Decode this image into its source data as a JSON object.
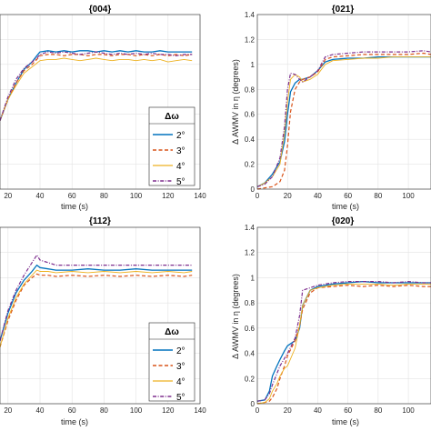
{
  "colors": {
    "s2": "#0072BD",
    "s3": "#D95319",
    "s4": "#EDB120",
    "s5": "#7E2F8E"
  },
  "chart_data": [
    {
      "type": "line",
      "title": "{004}",
      "xlabel": "time (s)",
      "ylabel": "",
      "xlim": [
        15,
        140
      ],
      "ylim": [
        0,
        1.4
      ],
      "xticks": [
        20,
        40,
        60,
        80,
        100,
        120,
        140
      ],
      "yticks": [],
      "grid": true,
      "legend": {
        "title": "Δω",
        "placement": "bottom-right",
        "entries": [
          "2°",
          "3°",
          "4°",
          "5°"
        ]
      },
      "series": [
        {
          "name": "2°",
          "x": [
            15,
            20,
            25,
            30,
            35,
            38,
            40,
            45,
            50,
            55,
            60,
            65,
            70,
            75,
            80,
            85,
            90,
            95,
            100,
            105,
            110,
            115,
            120,
            125,
            130,
            135
          ],
          "y": [
            0.55,
            0.72,
            0.85,
            0.96,
            1.02,
            1.07,
            1.1,
            1.11,
            1.1,
            1.11,
            1.1,
            1.11,
            1.11,
            1.1,
            1.11,
            1.1,
            1.11,
            1.1,
            1.11,
            1.1,
            1.1,
            1.11,
            1.1,
            1.1,
            1.1,
            1.1
          ]
        },
        {
          "name": "3°",
          "x": [
            15,
            20,
            25,
            30,
            35,
            38,
            40,
            45,
            50,
            55,
            60,
            65,
            70,
            75,
            80,
            85,
            90,
            95,
            100,
            105,
            110,
            115,
            120,
            125,
            130,
            135
          ],
          "y": [
            0.55,
            0.72,
            0.85,
            0.95,
            1.0,
            1.04,
            1.07,
            1.08,
            1.08,
            1.07,
            1.08,
            1.08,
            1.07,
            1.08,
            1.08,
            1.07,
            1.08,
            1.08,
            1.07,
            1.08,
            1.07,
            1.08,
            1.07,
            1.08,
            1.07,
            1.08
          ]
        },
        {
          "name": "4°",
          "x": [
            15,
            20,
            25,
            30,
            35,
            38,
            40,
            45,
            50,
            55,
            60,
            65,
            70,
            75,
            80,
            85,
            90,
            95,
            100,
            105,
            110,
            115,
            120,
            125,
            130,
            135
          ],
          "y": [
            0.55,
            0.72,
            0.83,
            0.93,
            0.98,
            1.01,
            1.03,
            1.04,
            1.04,
            1.05,
            1.04,
            1.03,
            1.04,
            1.05,
            1.04,
            1.03,
            1.04,
            1.04,
            1.03,
            1.04,
            1.03,
            1.04,
            1.02,
            1.03,
            1.04,
            1.03
          ]
        },
        {
          "name": "5°",
          "x": [
            15,
            20,
            25,
            30,
            35,
            38,
            40,
            45,
            50,
            55,
            60,
            65,
            70,
            75,
            80,
            85,
            90,
            95,
            100,
            105,
            110,
            115,
            120,
            125,
            130,
            135
          ],
          "y": [
            0.55,
            0.74,
            0.88,
            0.97,
            1.02,
            1.05,
            1.08,
            1.1,
            1.09,
            1.1,
            1.09,
            1.08,
            1.09,
            1.1,
            1.09,
            1.08,
            1.09,
            1.08,
            1.09,
            1.08,
            1.09,
            1.08,
            1.08,
            1.07,
            1.08,
            1.08
          ]
        }
      ]
    },
    {
      "type": "line",
      "title": "{021}",
      "xlabel": "time (s)",
      "ylabel": "Δ AWMV in η (degrees)",
      "xlim": [
        0,
        115
      ],
      "ylim": [
        0,
        1.4
      ],
      "xticks": [
        0,
        20,
        40,
        60,
        80,
        100
      ],
      "yticks": [
        0,
        0.2,
        0.4,
        0.6,
        0.8,
        1,
        1.2,
        1.4
      ],
      "grid": true,
      "series": [
        {
          "name": "2°",
          "x": [
            0,
            5,
            10,
            15,
            18,
            20,
            22,
            25,
            28,
            30,
            35,
            40,
            45,
            50,
            60,
            70,
            80,
            90,
            100,
            110,
            115
          ],
          "y": [
            0.02,
            0.05,
            0.12,
            0.22,
            0.38,
            0.6,
            0.78,
            0.85,
            0.88,
            0.88,
            0.9,
            0.95,
            1.02,
            1.04,
            1.05,
            1.05,
            1.06,
            1.06,
            1.06,
            1.06,
            1.06
          ]
        },
        {
          "name": "3°",
          "x": [
            0,
            5,
            10,
            15,
            18,
            20,
            22,
            25,
            28,
            30,
            35,
            40,
            45,
            50,
            60,
            70,
            80,
            90,
            100,
            110,
            115
          ],
          "y": [
            0.0,
            0.01,
            0.02,
            0.06,
            0.15,
            0.35,
            0.62,
            0.8,
            0.86,
            0.88,
            0.9,
            0.94,
            1.04,
            1.06,
            1.07,
            1.08,
            1.08,
            1.08,
            1.08,
            1.09,
            1.08
          ]
        },
        {
          "name": "4°",
          "x": [
            0,
            5,
            10,
            15,
            18,
            20,
            22,
            25,
            28,
            30,
            35,
            40,
            45,
            50,
            60,
            70,
            80,
            90,
            100,
            110,
            115
          ],
          "y": [
            0.02,
            0.05,
            0.1,
            0.2,
            0.45,
            0.7,
            0.88,
            0.92,
            0.9,
            0.86,
            0.88,
            0.92,
            1.0,
            1.03,
            1.04,
            1.05,
            1.05,
            1.06,
            1.06,
            1.06,
            1.06
          ]
        },
        {
          "name": "5°",
          "x": [
            0,
            5,
            10,
            15,
            18,
            20,
            22,
            25,
            28,
            30,
            35,
            40,
            45,
            50,
            60,
            70,
            80,
            90,
            100,
            110,
            115
          ],
          "y": [
            0.02,
            0.04,
            0.1,
            0.25,
            0.5,
            0.8,
            0.93,
            0.92,
            0.88,
            0.86,
            0.9,
            0.95,
            1.06,
            1.08,
            1.09,
            1.1,
            1.1,
            1.1,
            1.1,
            1.11,
            1.1
          ]
        }
      ]
    },
    {
      "type": "line",
      "title": "{112}",
      "xlabel": "time (s)",
      "ylabel": "",
      "xlim": [
        15,
        140
      ],
      "ylim": [
        0,
        1.4
      ],
      "xticks": [
        20,
        40,
        60,
        80,
        100,
        120,
        140
      ],
      "yticks": [],
      "grid": true,
      "legend": {
        "title": "Δω",
        "placement": "bottom-right",
        "entries": [
          "2°",
          "3°",
          "4°",
          "5°"
        ]
      },
      "series": [
        {
          "name": "2°",
          "x": [
            15,
            20,
            25,
            30,
            35,
            38,
            40,
            45,
            50,
            60,
            70,
            80,
            90,
            100,
            110,
            120,
            130,
            135
          ],
          "y": [
            0.5,
            0.72,
            0.88,
            0.98,
            1.05,
            1.1,
            1.08,
            1.07,
            1.06,
            1.06,
            1.07,
            1.06,
            1.06,
            1.07,
            1.06,
            1.06,
            1.06,
            1.06
          ]
        },
        {
          "name": "3°",
          "x": [
            15,
            20,
            25,
            30,
            35,
            38,
            40,
            45,
            50,
            60,
            70,
            80,
            90,
            100,
            110,
            120,
            130,
            135
          ],
          "y": [
            0.45,
            0.66,
            0.82,
            0.94,
            1.0,
            1.03,
            1.02,
            1.02,
            1.01,
            1.02,
            1.01,
            1.02,
            1.01,
            1.02,
            1.01,
            1.02,
            1.01,
            1.02
          ]
        },
        {
          "name": "4°",
          "x": [
            15,
            20,
            25,
            30,
            35,
            38,
            40,
            45,
            50,
            60,
            70,
            80,
            90,
            100,
            110,
            120,
            130,
            135
          ],
          "y": [
            0.45,
            0.68,
            0.84,
            0.95,
            1.02,
            1.06,
            1.05,
            1.05,
            1.04,
            1.05,
            1.04,
            1.05,
            1.04,
            1.05,
            1.04,
            1.05,
            1.04,
            1.05
          ]
        },
        {
          "name": "5°",
          "x": [
            15,
            20,
            25,
            30,
            35,
            38,
            40,
            45,
            50,
            60,
            70,
            80,
            90,
            100,
            110,
            120,
            130,
            135
          ],
          "y": [
            0.5,
            0.74,
            0.9,
            1.02,
            1.12,
            1.18,
            1.14,
            1.12,
            1.1,
            1.1,
            1.1,
            1.1,
            1.1,
            1.1,
            1.1,
            1.1,
            1.1,
            1.1
          ]
        }
      ]
    },
    {
      "type": "line",
      "title": "{020}",
      "xlabel": "time (s)",
      "ylabel": "Δ AWMV in η (degrees)",
      "xlim": [
        0,
        115
      ],
      "ylim": [
        0,
        1.4
      ],
      "xticks": [
        0,
        20,
        40,
        60,
        80,
        100
      ],
      "yticks": [
        0,
        0.2,
        0.4,
        0.6,
        0.8,
        1,
        1.2,
        1.4
      ],
      "grid": true,
      "series": [
        {
          "name": "2°",
          "x": [
            0,
            5,
            8,
            10,
            13,
            15,
            18,
            20,
            25,
            28,
            30,
            35,
            40,
            50,
            60,
            70,
            80,
            90,
            100,
            110,
            115
          ],
          "y": [
            0.02,
            0.03,
            0.1,
            0.22,
            0.3,
            0.35,
            0.42,
            0.46,
            0.5,
            0.6,
            0.78,
            0.9,
            0.93,
            0.95,
            0.96,
            0.97,
            0.96,
            0.96,
            0.96,
            0.96,
            0.96
          ]
        },
        {
          "name": "3°",
          "x": [
            0,
            5,
            8,
            10,
            13,
            15,
            18,
            20,
            25,
            28,
            30,
            35,
            40,
            50,
            60,
            70,
            80,
            90,
            100,
            110,
            115
          ],
          "y": [
            0.0,
            0.01,
            0.02,
            0.05,
            0.12,
            0.2,
            0.3,
            0.38,
            0.5,
            0.62,
            0.75,
            0.88,
            0.92,
            0.93,
            0.94,
            0.93,
            0.94,
            0.93,
            0.94,
            0.93,
            0.93
          ]
        },
        {
          "name": "4°",
          "x": [
            0,
            5,
            8,
            10,
            13,
            15,
            18,
            20,
            25,
            28,
            30,
            35,
            40,
            50,
            60,
            70,
            80,
            90,
            100,
            110,
            115
          ],
          "y": [
            0.0,
            0.01,
            0.04,
            0.1,
            0.16,
            0.22,
            0.28,
            0.3,
            0.44,
            0.62,
            0.78,
            0.9,
            0.92,
            0.94,
            0.95,
            0.95,
            0.95,
            0.94,
            0.95,
            0.95,
            0.95
          ]
        },
        {
          "name": "5°",
          "x": [
            0,
            5,
            8,
            10,
            13,
            15,
            18,
            20,
            25,
            28,
            30,
            35,
            40,
            50,
            60,
            70,
            80,
            90,
            100,
            110,
            115
          ],
          "y": [
            0.02,
            0.03,
            0.08,
            0.15,
            0.24,
            0.3,
            0.36,
            0.4,
            0.52,
            0.7,
            0.9,
            0.92,
            0.94,
            0.96,
            0.97,
            0.97,
            0.97,
            0.96,
            0.97,
            0.96,
            0.96
          ]
        }
      ]
    }
  ]
}
